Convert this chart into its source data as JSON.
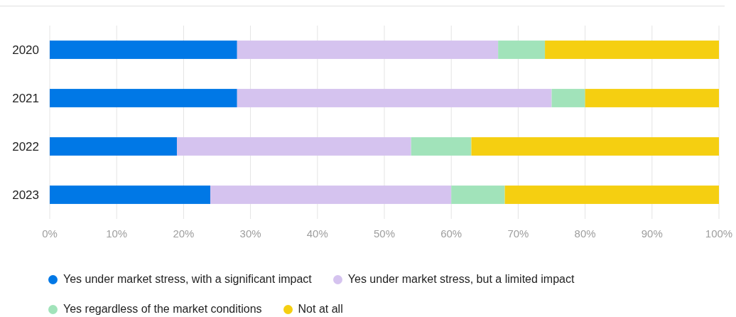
{
  "chart_data": {
    "type": "bar",
    "orientation": "horizontal",
    "stacked": true,
    "categories": [
      "2020",
      "2021",
      "2022",
      "2023"
    ],
    "series": [
      {
        "name": "Yes under market stress, with a significant impact",
        "color": "#0078e6",
        "values": [
          28,
          28,
          19,
          24
        ]
      },
      {
        "name": "Yes under market stress, but a limited impact",
        "color": "#d5c3ef",
        "values": [
          39,
          47,
          35,
          36
        ]
      },
      {
        "name": "Yes regardless of the market conditions",
        "color": "#a1e3ba",
        "values": [
          7,
          5,
          9,
          8
        ]
      },
      {
        "name": "Not at all",
        "color": "#f5cf11",
        "values": [
          26,
          20,
          37,
          32
        ]
      }
    ],
    "xlim": [
      0,
      100
    ],
    "xticks": [
      {
        "value": 0,
        "label": "0%"
      },
      {
        "value": 10,
        "label": "10%"
      },
      {
        "value": 20,
        "label": "20%"
      },
      {
        "value": 30,
        "label": "30%"
      },
      {
        "value": 40,
        "label": "40%"
      },
      {
        "value": 50,
        "label": "50%"
      },
      {
        "value": 60,
        "label": "60%"
      },
      {
        "value": 70,
        "label": "70%"
      },
      {
        "value": 80,
        "label": "80%"
      },
      {
        "value": 90,
        "label": "90%"
      },
      {
        "value": 100,
        "label": "100%"
      }
    ],
    "grid": "x",
    "legend": "bottom"
  }
}
